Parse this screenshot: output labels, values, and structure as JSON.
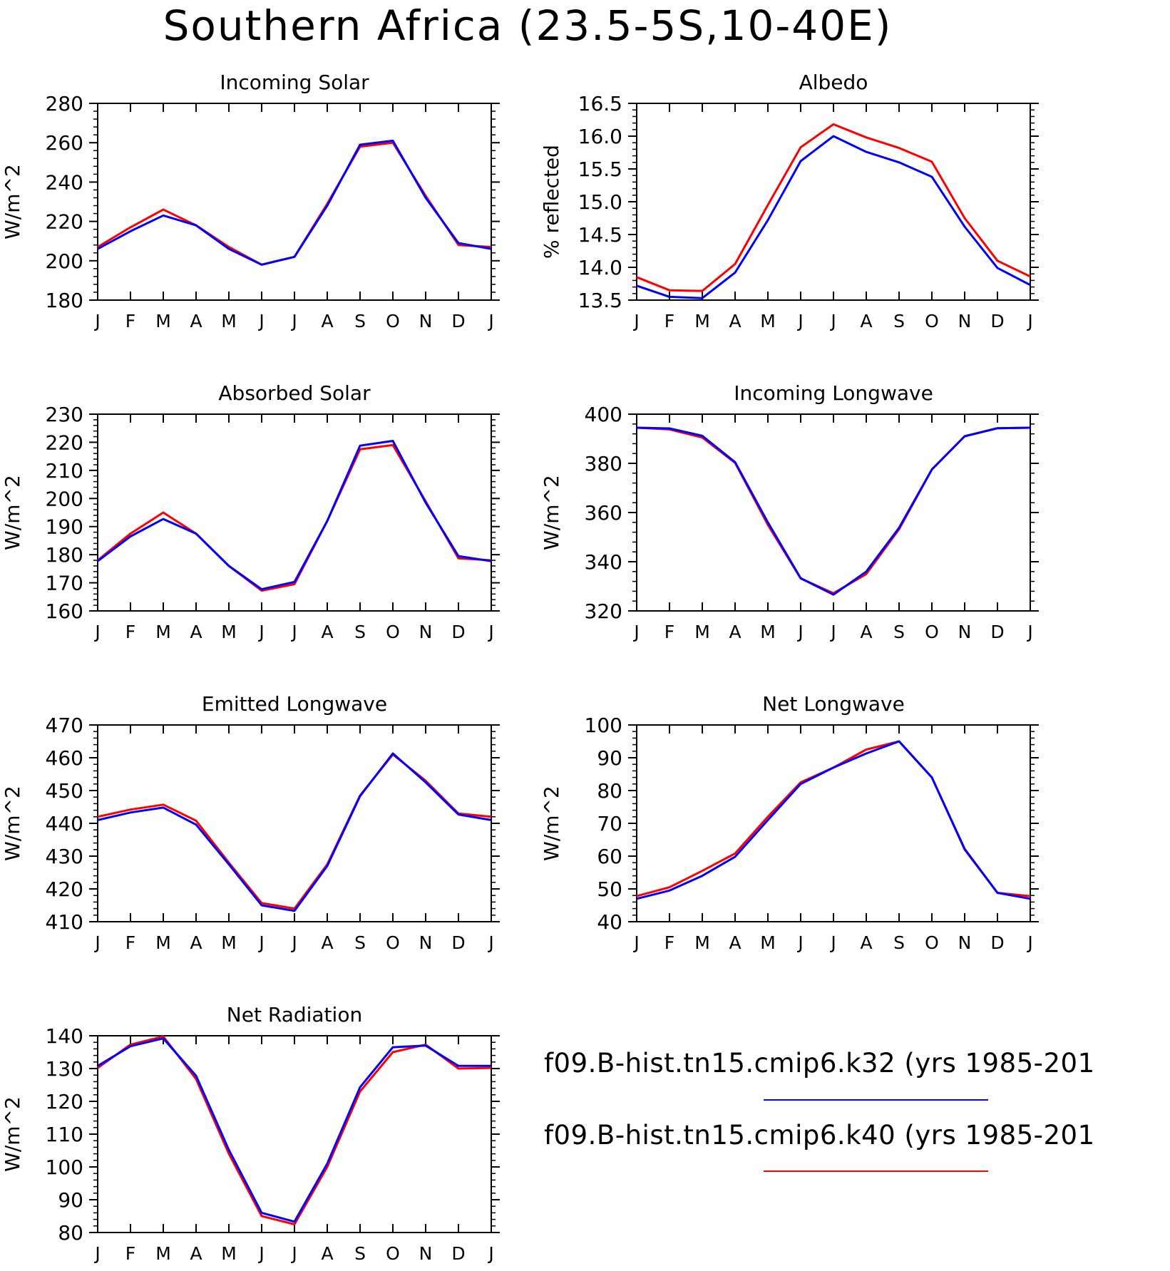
{
  "title": "Southern Africa (23.5-5S,10-40E)",
  "months": [
    "J",
    "F",
    "M",
    "A",
    "M",
    "J",
    "J",
    "A",
    "S",
    "O",
    "N",
    "D",
    "J"
  ],
  "colors": {
    "red": "#ff0000",
    "blue": "#0000ff"
  },
  "legend": [
    {
      "label": "f09.B-hist.tn15.cmip6.k32 (yrs 1985-201",
      "color": "#0000ff"
    },
    {
      "label": "f09.B-hist.tn15.cmip6.k40 (yrs 1985-201",
      "color": "#ff0000"
    }
  ],
  "chart_data": [
    {
      "type": "line",
      "title": "Incoming Solar",
      "ylabel": "W/m^2",
      "ylim": [
        180,
        280
      ],
      "yticks": [
        180,
        200,
        220,
        240,
        260,
        280
      ],
      "series": [
        {
          "name": "f09.B-hist.tn15.cmip6.k40 (yrs 1985-201",
          "color": "#ff0000",
          "values": [
            207,
            217,
            226,
            218,
            207,
            198,
            202,
            229,
            258,
            260,
            233,
            208,
            207
          ]
        },
        {
          "name": "f09.B-hist.tn15.cmip6.k32 (yrs 1985-201",
          "color": "#0000ff",
          "values": [
            206,
            215,
            223,
            218,
            206,
            198,
            202,
            228,
            259,
            261,
            232,
            209,
            206
          ]
        }
      ]
    },
    {
      "type": "line",
      "title": "Albedo",
      "ylabel": "% reflected",
      "ylim": [
        13.5,
        16.5
      ],
      "yticks": [
        "13.5",
        "14.0",
        "14.5",
        "15.0",
        "15.5",
        "16.0",
        "16.5"
      ],
      "series": [
        {
          "name": "f09.B-hist.tn15.cmip6.k40 (yrs 1985-201",
          "color": "#ff0000",
          "values": [
            13.85,
            13.65,
            13.64,
            14.05,
            14.95,
            15.83,
            16.18,
            15.98,
            15.82,
            15.61,
            14.75,
            14.1,
            13.86
          ]
        },
        {
          "name": "f09.B-hist.tn15.cmip6.k32 (yrs 1985-201",
          "color": "#0000ff",
          "values": [
            13.72,
            13.55,
            13.53,
            13.92,
            14.72,
            15.62,
            16.0,
            15.76,
            15.6,
            15.38,
            14.62,
            13.99,
            13.73
          ]
        }
      ]
    },
    {
      "type": "line",
      "title": "Absorbed Solar",
      "ylabel": "W/m^2",
      "ylim": [
        160,
        230
      ],
      "yticks": [
        160,
        170,
        180,
        190,
        200,
        210,
        220,
        230
      ],
      "series": [
        {
          "name": "f09.B-hist.tn15.cmip6.k40 (yrs 1985-201",
          "color": "#ff0000",
          "values": [
            178,
            187.5,
            195,
            187.5,
            176,
            167.2,
            169.5,
            192,
            217.5,
            219,
            199,
            178.7,
            178
          ]
        },
        {
          "name": "f09.B-hist.tn15.cmip6.k32 (yrs 1985-201",
          "color": "#0000ff",
          "values": [
            177.7,
            186.5,
            192.7,
            187.5,
            176,
            167.7,
            170.3,
            192,
            218.8,
            220.5,
            198.5,
            179.5,
            177.7
          ]
        }
      ]
    },
    {
      "type": "line",
      "title": "Incoming Longwave",
      "ylabel": "W/m^2",
      "ylim": [
        320,
        400
      ],
      "yticks": [
        320,
        340,
        360,
        380,
        400
      ],
      "series": [
        {
          "name": "f09.B-hist.tn15.cmip6.k40 (yrs 1985-201",
          "color": "#ff0000",
          "values": [
            394.5,
            393.8,
            390.5,
            380.2,
            355,
            333.2,
            327.2,
            335,
            353.2,
            377.5,
            391,
            394.3,
            394.5
          ]
        },
        {
          "name": "f09.B-hist.tn15.cmip6.k32 (yrs 1985-201",
          "color": "#0000ff",
          "values": [
            394.5,
            394.2,
            391.2,
            380.5,
            356,
            333.3,
            326.6,
            336,
            353.8,
            377.5,
            391,
            394.3,
            394.5
          ]
        }
      ]
    },
    {
      "type": "line",
      "title": "Emitted Longwave",
      "ylabel": "W/m^2",
      "ylim": [
        410,
        470
      ],
      "yticks": [
        410,
        420,
        430,
        440,
        450,
        460,
        470
      ],
      "series": [
        {
          "name": "f09.B-hist.tn15.cmip6.k40 (yrs 1985-201",
          "color": "#ff0000",
          "values": [
            442,
            444.2,
            445.7,
            440.8,
            428,
            415.7,
            414,
            427.5,
            448.5,
            461,
            453,
            443,
            442
          ]
        },
        {
          "name": "f09.B-hist.tn15.cmip6.k32 (yrs 1985-201",
          "color": "#0000ff",
          "values": [
            441,
            443.3,
            444.8,
            439.6,
            427.5,
            415,
            413.3,
            427,
            448.3,
            461.3,
            452.5,
            442.7,
            441
          ]
        }
      ]
    },
    {
      "type": "line",
      "title": "Net Longwave",
      "ylabel": "W/m^2",
      "ylim": [
        40,
        100
      ],
      "yticks": [
        40,
        50,
        60,
        70,
        80,
        90,
        100
      ],
      "series": [
        {
          "name": "f09.B-hist.tn15.cmip6.k40 (yrs 1985-201",
          "color": "#ff0000",
          "values": [
            47.8,
            50.5,
            55.5,
            60.8,
            72,
            82.5,
            87,
            92.5,
            95,
            84,
            62,
            48.8,
            47.8
          ]
        },
        {
          "name": "f09.B-hist.tn15.cmip6.k32 (yrs 1985-201",
          "color": "#0000ff",
          "values": [
            47,
            49.5,
            54,
            59.8,
            71,
            82,
            87,
            91.3,
            95,
            84,
            62.2,
            48.8,
            47
          ]
        }
      ]
    },
    {
      "type": "line",
      "title": "Net Radiation",
      "ylabel": "W/m^2",
      "ylim": [
        80,
        140
      ],
      "yticks": [
        80,
        90,
        100,
        110,
        120,
        130,
        140
      ],
      "series": [
        {
          "name": "f09.B-hist.tn15.cmip6.k40 (yrs 1985-201",
          "color": "#ff0000",
          "values": [
            130.2,
            137.3,
            139.8,
            126.8,
            104,
            85,
            82.5,
            100,
            123,
            135,
            137.3,
            130,
            130.2
          ]
        },
        {
          "name": "f09.B-hist.tn15.cmip6.k32 (yrs 1985-201",
          "color": "#0000ff",
          "values": [
            130.8,
            136.8,
            139.2,
            127.8,
            105.2,
            86,
            83.3,
            101,
            124.3,
            136.5,
            137,
            130.8,
            130.8
          ]
        }
      ]
    }
  ]
}
